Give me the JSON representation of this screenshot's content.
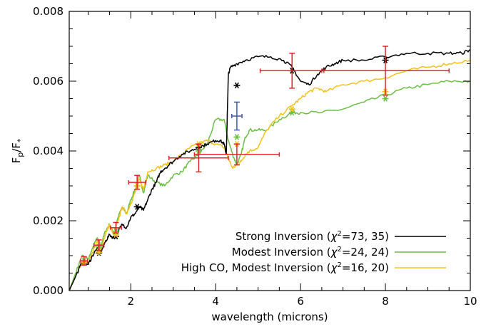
{
  "chart_data": {
    "type": "line",
    "xlabel": "wavelength (microns)",
    "ylabel": "F",
    "ylabel_sub1": "p",
    "ylabel_sep": "/F",
    "ylabel_sub2": "*",
    "xlim": [
      0.55,
      10
    ],
    "ylim": [
      0,
      0.008
    ],
    "xticks": [
      2,
      4,
      6,
      8,
      10
    ],
    "xtick_labels": [
      "2",
      "4",
      "6",
      "8",
      "10"
    ],
    "yticks": [
      0,
      0.002,
      0.004,
      0.006,
      0.008
    ],
    "ytick_labels": [
      "0.000",
      "0.002",
      "0.004",
      "0.006",
      "0.008"
    ],
    "grid": false,
    "legend_position": "bottom-right",
    "series": [
      {
        "name": "Strong Inversion (χ²=73, 35)",
        "legend_main": "Strong Inversion (",
        "legend_chi": "χ",
        "legend_sup": "2",
        "legend_rest": "=73, 35)",
        "color": "#000000",
        "x": [
          0.55,
          0.7,
          0.85,
          1.0,
          1.1,
          1.2,
          1.3,
          1.4,
          1.5,
          1.6,
          1.7,
          1.8,
          1.9,
          2.0,
          2.1,
          2.2,
          2.3,
          2.4,
          2.5,
          2.6,
          2.7,
          2.8,
          3.0,
          3.2,
          3.4,
          3.6,
          3.8,
          4.0,
          4.1,
          4.2,
          4.25,
          4.3,
          4.35,
          4.5,
          4.7,
          5.0,
          5.3,
          5.6,
          5.8,
          6.0,
          6.2,
          6.4,
          6.6,
          6.8,
          7.0,
          7.5,
          8.0,
          8.5,
          9.0,
          9.5,
          9.8,
          10.0
        ],
        "y": [
          0.0,
          0.0004,
          0.0008,
          0.00075,
          0.001,
          0.0012,
          0.0011,
          0.0014,
          0.0016,
          0.0015,
          0.0017,
          0.0019,
          0.0018,
          0.0021,
          0.0022,
          0.0024,
          0.0023,
          0.0026,
          0.0029,
          0.0031,
          0.0034,
          0.0035,
          0.0037,
          0.0039,
          0.004,
          0.0041,
          0.0042,
          0.0043,
          0.0043,
          0.0042,
          0.0039,
          0.0062,
          0.0064,
          0.0065,
          0.0066,
          0.0067,
          0.0067,
          0.0066,
          0.0064,
          0.006,
          0.0059,
          0.0062,
          0.0064,
          0.0065,
          0.0066,
          0.0066,
          0.0067,
          0.0068,
          0.0068,
          0.0068,
          0.0068,
          0.0069
        ]
      },
      {
        "name": "Modest Inversion (χ²=24, 24)",
        "legend_main": "Modest Inversion (",
        "legend_chi": "χ",
        "legend_sup": "2",
        "legend_rest": "=24, 24)",
        "color": "#6cbd45",
        "x": [
          0.55,
          0.7,
          0.85,
          1.0,
          1.1,
          1.2,
          1.3,
          1.4,
          1.5,
          1.6,
          1.7,
          1.8,
          1.9,
          2.0,
          2.1,
          2.2,
          2.3,
          2.4,
          2.6,
          2.8,
          3.0,
          3.2,
          3.4,
          3.6,
          3.8,
          4.0,
          4.2,
          4.3,
          4.4,
          4.5,
          4.6,
          4.7,
          4.8,
          5.0,
          5.2,
          5.5,
          5.8,
          6.0,
          6.5,
          7.0,
          7.5,
          8.0,
          8.5,
          9.0,
          9.5,
          10.0
        ],
        "y": [
          0.0,
          0.0005,
          0.001,
          0.0009,
          0.0012,
          0.0015,
          0.0013,
          0.0017,
          0.0019,
          0.0016,
          0.0021,
          0.0024,
          0.0022,
          0.0026,
          0.0029,
          0.0033,
          0.0028,
          0.0033,
          0.0031,
          0.003,
          0.0033,
          0.0034,
          0.0037,
          0.0039,
          0.0042,
          0.0049,
          0.0049,
          0.0043,
          0.0039,
          0.0036,
          0.0039,
          0.0044,
          0.0046,
          0.0046,
          0.0046,
          0.0049,
          0.0051,
          0.0051,
          0.0051,
          0.0052,
          0.0054,
          0.0056,
          0.0058,
          0.0059,
          0.006,
          0.006
        ]
      },
      {
        "name": "High CO, Modest Inversion (χ²=16, 20)",
        "legend_main": "High CO, Modest Inversion (",
        "legend_chi": "χ",
        "legend_sup": "2",
        "legend_rest": "=16, 20)",
        "color": "#f2c21b",
        "x": [
          0.55,
          0.7,
          0.85,
          1.0,
          1.1,
          1.2,
          1.3,
          1.4,
          1.5,
          1.6,
          1.7,
          1.8,
          1.9,
          2.0,
          2.1,
          2.2,
          2.3,
          2.4,
          2.6,
          2.8,
          3.0,
          3.2,
          3.4,
          3.6,
          3.8,
          4.0,
          4.2,
          4.3,
          4.4,
          4.5,
          4.6,
          4.7,
          4.8,
          5.0,
          5.2,
          5.5,
          5.8,
          6.0,
          6.2,
          6.4,
          6.6,
          7.0,
          7.5,
          8.0,
          8.5,
          9.0,
          9.5,
          10.0
        ],
        "y": [
          0.0,
          0.0004,
          0.0008,
          0.0008,
          0.0011,
          0.0014,
          0.0012,
          0.0016,
          0.0019,
          0.0016,
          0.002,
          0.0024,
          0.0022,
          0.0025,
          0.0028,
          0.0032,
          0.0029,
          0.0034,
          0.0035,
          0.0036,
          0.0037,
          0.0039,
          0.0041,
          0.0042,
          0.0043,
          0.0042,
          0.0041,
          0.0038,
          0.0035,
          0.0036,
          0.0037,
          0.0039,
          0.004,
          0.0041,
          0.0046,
          0.005,
          0.0053,
          0.0055,
          0.0057,
          0.0058,
          0.0057,
          0.0059,
          0.006,
          0.0061,
          0.0063,
          0.0064,
          0.0065,
          0.0066
        ]
      }
    ],
    "model_points": [
      {
        "series": 0,
        "x": [
          0.9,
          1.25,
          1.65,
          2.15,
          3.6,
          4.5,
          5.8,
          8.0
        ],
        "y": [
          0.0008,
          0.00108,
          0.00155,
          0.0024,
          0.0041,
          0.00588,
          0.0063,
          0.0066
        ]
      },
      {
        "series": 1,
        "x": [
          0.9,
          1.25,
          1.65,
          2.15,
          3.6,
          4.5,
          5.8,
          8.0
        ],
        "y": [
          0.00085,
          0.00125,
          0.0017,
          0.003,
          0.004,
          0.0044,
          0.0051,
          0.0055
        ]
      },
      {
        "series": 2,
        "x": [
          0.9,
          1.25,
          1.65,
          2.15,
          3.6,
          4.5,
          5.8,
          8.0
        ],
        "y": [
          0.0008,
          0.0011,
          0.0016,
          0.003,
          0.0042,
          0.0042,
          0.0052,
          0.0057
        ]
      }
    ],
    "observations": [
      {
        "x": 0.9,
        "y": 0.00085,
        "xerr": 0.08,
        "yerr": 0.00012,
        "color": "#e0232f"
      },
      {
        "x": 1.25,
        "y": 0.0013,
        "xerr": 0.12,
        "yerr": 0.00015,
        "color": "#e0232f"
      },
      {
        "x": 1.65,
        "y": 0.0018,
        "xerr": 0.13,
        "yerr": 0.00015,
        "color": "#e0232f"
      },
      {
        "x": 2.15,
        "y": 0.0031,
        "xerr": 0.2,
        "yerr": 0.0002,
        "color": "#e0232f"
      },
      {
        "x": 3.6,
        "y": 0.0038,
        "xerr": 0.7,
        "yerr": 0.0004,
        "color": "#e0232f"
      },
      {
        "x": 4.5,
        "y": 0.0039,
        "xerr": 1.0,
        "yerr": 0.0003,
        "color": "#e0232f"
      },
      {
        "x": 4.5,
        "y": 0.005,
        "xerr": 0.12,
        "yerr": 0.0004,
        "color": "#3f5aa8"
      },
      {
        "x": 5.8,
        "y": 0.0063,
        "xerr": 0.75,
        "yerr": 0.0005,
        "color": "#e0232f"
      },
      {
        "x": 8.0,
        "y": 0.0063,
        "xerr": 1.5,
        "yerr": 0.0007,
        "color": "#e0232f"
      }
    ]
  }
}
